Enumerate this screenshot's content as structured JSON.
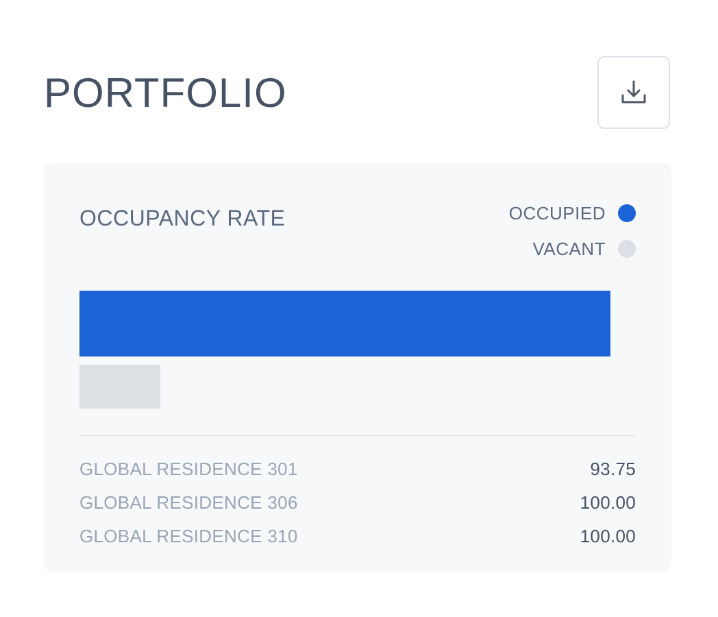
{
  "header": {
    "title": "PORTFOLIO",
    "download_icon": "download-icon"
  },
  "card": {
    "title": "OCCUPANCY RATE",
    "legend": [
      {
        "label": "OCCUPIED",
        "color": "#1b63d6"
      },
      {
        "label": "VACANT",
        "color": "#dcdfe4"
      }
    ]
  },
  "chart_data": {
    "type": "bar",
    "orientation": "horizontal",
    "categories": [
      "OCCUPIED",
      "VACANT"
    ],
    "values": [
      0.955,
      0.145
    ],
    "colors": [
      "#1b63d6",
      "#dcdfe4"
    ],
    "xlim": [
      0,
      1
    ]
  },
  "rows": [
    {
      "name": "GLOBAL RESIDENCE 301",
      "value": "93.75"
    },
    {
      "name": "GLOBAL RESIDENCE 306",
      "value": "100.00"
    },
    {
      "name": "GLOBAL RESIDENCE 310",
      "value": "100.00"
    }
  ]
}
